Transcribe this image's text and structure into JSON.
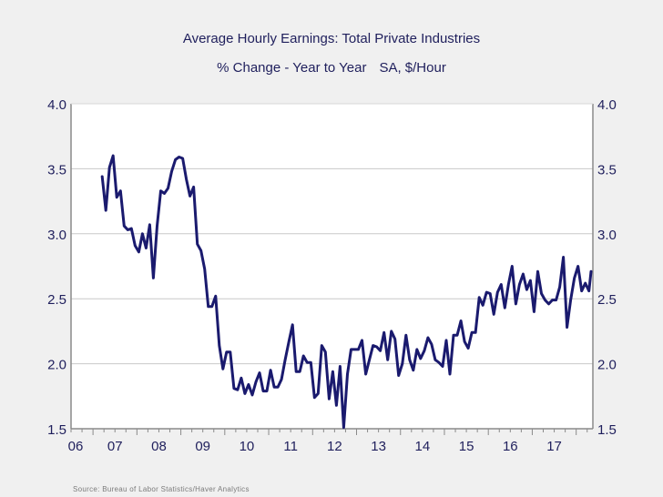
{
  "chart_data": {
    "type": "line",
    "title": "Average Hourly Earnings: Total Private Industries",
    "subtitle": [
      "% Change - Year to Year",
      "SA, $/Hour"
    ],
    "xlabel": "",
    "ylabel": "",
    "ylim": [
      1.5,
      4.0
    ],
    "yticks": [
      "4.0",
      "3.5",
      "3.0",
      "2.5",
      "2.0",
      "1.5"
    ],
    "ytick_values": [
      4.0,
      3.5,
      3.0,
      2.5,
      2.0,
      1.5
    ],
    "y_axis_sides": [
      "left",
      "right"
    ],
    "xlim_years": [
      2006.5,
      2018.38
    ],
    "xticks": [
      "06",
      "07",
      "08",
      "09",
      "10",
      "11",
      "12",
      "13",
      "14",
      "15",
      "16",
      "17"
    ],
    "xtick_years": [
      2006,
      2007,
      2008,
      2009,
      2010,
      2011,
      2012,
      2013,
      2014,
      2015,
      2016,
      2017
    ],
    "grid": "horizontal",
    "legend": "none",
    "series": [
      {
        "name": "Average Hourly Earnings: Total Private Industries (% Change Y/Y)",
        "color": "#1a1a6e",
        "start": "2007-03",
        "frequency": "monthly",
        "values": [
          3.44,
          3.18,
          3.51,
          3.6,
          3.28,
          3.33,
          3.06,
          3.03,
          3.04,
          2.91,
          2.86,
          3.0,
          2.89,
          3.07,
          2.66,
          3.06,
          3.33,
          3.31,
          3.35,
          3.48,
          3.57,
          3.59,
          3.58,
          3.42,
          3.29,
          3.36,
          2.92,
          2.87,
          2.73,
          2.44,
          2.44,
          2.52,
          2.14,
          1.96,
          2.09,
          2.09,
          1.81,
          1.8,
          1.89,
          1.77,
          1.84,
          1.76,
          1.86,
          1.93,
          1.79,
          1.79,
          1.95,
          1.82,
          1.82,
          1.88,
          2.03,
          2.17,
          2.3,
          1.94,
          1.94,
          2.06,
          2.01,
          2.01,
          1.74,
          1.77,
          2.14,
          2.09,
          1.73,
          1.94,
          1.68,
          1.98,
          1.51,
          1.92,
          2.11,
          2.11,
          2.11,
          2.18,
          1.92,
          2.03,
          2.14,
          2.13,
          2.1,
          2.24,
          2.03,
          2.25,
          2.19,
          1.91,
          2.0,
          2.22,
          2.03,
          1.95,
          2.11,
          2.04,
          2.1,
          2.2,
          2.15,
          2.03,
          2.01,
          1.98,
          2.18,
          1.92,
          2.22,
          2.22,
          2.33,
          2.17,
          2.12,
          2.24,
          2.24,
          2.51,
          2.45,
          2.55,
          2.54,
          2.38,
          2.55,
          2.61,
          2.43,
          2.61,
          2.75,
          2.46,
          2.61,
          2.69,
          2.57,
          2.64,
          2.4,
          2.71,
          2.54,
          2.49,
          2.46,
          2.49,
          2.49,
          2.59,
          2.82,
          2.28,
          2.49,
          2.66,
          2.75,
          2.56,
          2.62,
          2.56,
          2.71
        ]
      }
    ],
    "source": "Source:  Bureau of Labor Statistics/Haver Analytics"
  },
  "colors": {
    "background": "#f0f0f0",
    "plot_background": "#ffffff",
    "text": "#1f1f5c",
    "gridline": "#c8c8c8",
    "axis": "#8a8a8a"
  }
}
